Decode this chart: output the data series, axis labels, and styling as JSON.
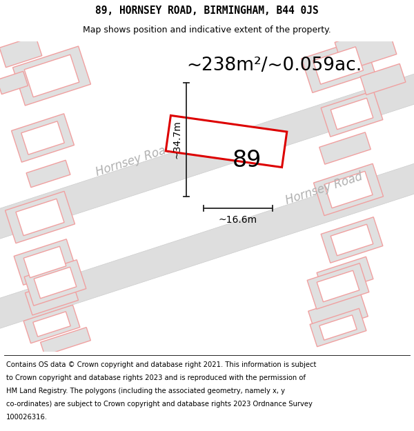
{
  "title_line1": "89, HORNSEY ROAD, BIRMINGHAM, B44 0JS",
  "title_line2": "Map shows position and indicative extent of the property.",
  "area_text": "~238m²/~0.059ac.",
  "property_number": "89",
  "dim_vertical": "~34.7m",
  "dim_horizontal": "~16.6m",
  "footer_lines": [
    "Contains OS data © Crown copyright and database right 2021. This information is subject",
    "to Crown copyright and database rights 2023 and is reproduced with the permission of",
    "HM Land Registry. The polygons (including the associated geometry, namely x, y",
    "co-ordinates) are subject to Crown copyright and database rights 2023 Ordnance Survey",
    "100026316."
  ],
  "bg_color": "#f7f7f7",
  "road_fill": "#dedede",
  "road_label_color": "#b0b0b0",
  "building_fill": "#e0e0e0",
  "building_outline": "#f0a0a0",
  "plot_outline_color": "#dd0000",
  "plot_fill": "#ffffff",
  "dim_line_color": "#222222",
  "title_fontsize": 10.5,
  "subtitle_fontsize": 9,
  "area_fontsize": 19,
  "number_fontsize": 24,
  "dim_fontsize": 10,
  "road_label_fontsize": 12,
  "footer_fontsize": 7.2
}
